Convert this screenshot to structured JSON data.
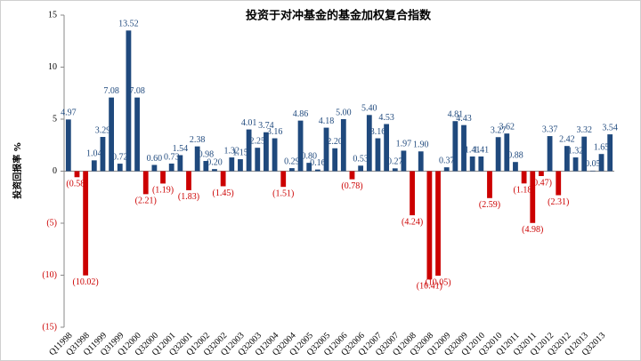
{
  "chart_data": {
    "type": "bar",
    "title": "投资于对冲基金的基金加权复合指数",
    "y_label": "投资回报率 %",
    "categories": [
      "Q11998",
      null,
      "Q31998",
      null,
      "Q11999",
      null,
      "Q31999",
      null,
      "Q12000",
      null,
      "Q32000",
      null,
      "Q12001",
      null,
      "Q32001",
      null,
      "Q12002",
      null,
      "Q32002",
      null,
      "Q12003",
      null,
      "Q32003",
      null,
      "Q12004",
      null,
      "Q32004",
      null,
      "Q12005",
      null,
      "Q32005",
      null,
      "Q12006",
      null,
      "Q32006",
      null,
      "Q12007",
      null,
      "Q32007",
      null,
      "Q12008",
      null,
      "Q32008",
      null,
      "Q12009",
      null,
      "Q32009",
      null,
      "Q12010",
      null,
      "Q32010",
      null,
      "Q12011",
      null,
      "Q32011",
      null,
      "Q12012",
      null,
      "Q32012",
      null,
      "Q12013",
      null,
      "Q32013",
      null
    ],
    "values": [
      4.97,
      -0.58,
      -10.02,
      1.04,
      3.29,
      7.08,
      0.72,
      13.52,
      7.08,
      -2.21,
      0.6,
      -1.19,
      0.73,
      1.54,
      -1.83,
      2.38,
      0.98,
      0.2,
      -1.45,
      1.32,
      1.15,
      4.01,
      2.25,
      3.74,
      3.16,
      -1.51,
      0.29,
      4.86,
      0.8,
      0.16,
      4.18,
      2.2,
      5.0,
      -0.78,
      0.53,
      5.4,
      3.16,
      4.53,
      0.27,
      1.97,
      -4.24,
      1.9,
      -10.41,
      -10.05,
      0.37,
      4.81,
      4.43,
      1.41,
      1.41,
      -2.59,
      3.27,
      3.62,
      0.88,
      -1.18,
      -4.98,
      -0.47,
      3.37,
      -2.31,
      2.42,
      1.32,
      3.32,
      0.05,
      1.65,
      3.54
    ],
    "value_labels": [
      "4.97",
      "(0.58)",
      "(10.02)",
      "1.04",
      "3.29",
      "7.08",
      "0.72",
      "13.52",
      "7.08",
      "(2.21)",
      "0.60",
      "(1.19)",
      "0.73",
      "1.54",
      "(1.83)",
      "2.38",
      "0.98",
      "0.20",
      "(1.45)",
      "1.32",
      "1.15",
      "4.01",
      "2.25",
      "3.74",
      "3.16",
      "(1.51)",
      "0.29",
      "4.86",
      "0.80",
      "0.16",
      "4.18",
      "2.20",
      "5.00",
      "(0.78)",
      "0.53",
      "5.40",
      "3.16",
      "4.53",
      "0.27",
      "1.97",
      "(4.24)",
      "1.90",
      "(10.41)",
      "(10.05)",
      "0.37",
      "4.81",
      "4.43",
      "1.41",
      "1.41",
      "(2.59)",
      "3.27",
      "3.62",
      "0.88",
      "(1.18)",
      "(4.98)",
      "(0.47)",
      "3.37",
      "(2.31)",
      "2.42",
      "1.32",
      "3.32",
      "0.05",
      "1.65",
      "3.54"
    ],
    "color": "#1f497d",
    "negative_color": "#cc0000",
    "ylim": [
      -15,
      15
    ],
    "yticks": [
      15,
      10,
      5,
      0,
      {
        "value": -5,
        "label": "(5)"
      },
      {
        "value": -10,
        "label": "(10)"
      },
      {
        "value": -15,
        "label": "(15)"
      }
    ],
    "grid": false
  }
}
